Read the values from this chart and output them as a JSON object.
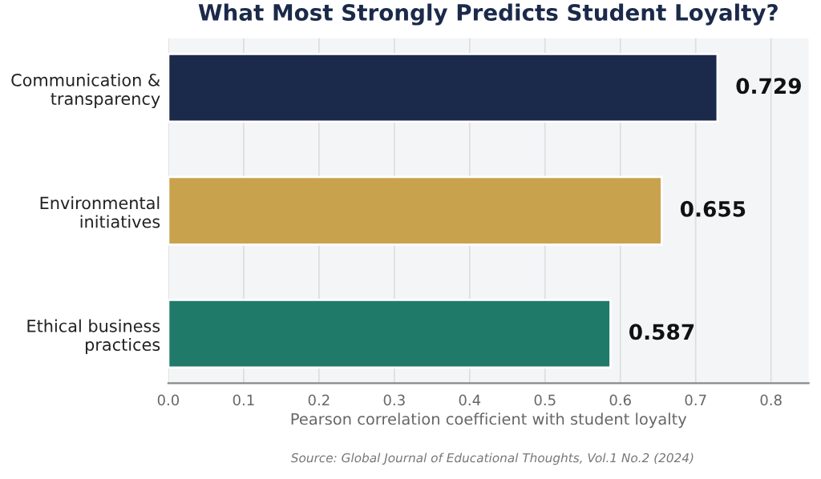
{
  "chart_data": {
    "type": "bar",
    "orientation": "horizontal",
    "title": "What Most Strongly Predicts Student Loyalty?",
    "categories": [
      "Communication &\ntransparency",
      "Environmental\ninitiatives",
      "Ethical business\npractices"
    ],
    "values": [
      0.729,
      0.655,
      0.587
    ],
    "colors": [
      "#1b2a4a",
      "#c9a24d",
      "#1f7a6a"
    ],
    "xlabel": "Pearson correlation coefficient with student loyalty",
    "xlim": [
      0,
      0.85
    ],
    "xticks": [
      {
        "value": 0,
        "label": "0.0"
      },
      0.1,
      0.2,
      0.3,
      0.4,
      0.5,
      0.6,
      0.7,
      0.8
    ],
    "grid": "x",
    "data_labels": true,
    "annotations": [
      "Source: Global Journal of Educational Thoughts, Vol.1 No.2 (2024)"
    ]
  }
}
